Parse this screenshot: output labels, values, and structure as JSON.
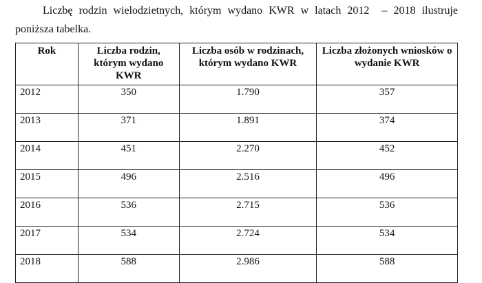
{
  "intro": {
    "lines": [
      "Liczbę rodzin wielodzietnych, którym wydano KWR w latach 2012  – 2018 ilustruje",
      "poniższa tabelka."
    ]
  },
  "table": {
    "header": [
      "Rok",
      "Liczba  rodzin, którym wydano KWR",
      "Liczba  osób w rodzinach, którym wydano KWR",
      "Liczba  złożonych wniosków o wydanie KWR"
    ],
    "rows": [
      [
        "2012",
        "350",
        "1.790",
        "357"
      ],
      [
        "2013",
        "371",
        "1.891",
        "374"
      ],
      [
        "2014",
        "451",
        "2.270",
        "452"
      ],
      [
        "2015",
        "496",
        "2.516",
        "496"
      ],
      [
        "2016",
        "536",
        "2.715",
        "536"
      ],
      [
        "2017",
        "534",
        "2.724",
        "534"
      ],
      [
        "2018",
        "588",
        "2.986",
        "588"
      ]
    ]
  }
}
